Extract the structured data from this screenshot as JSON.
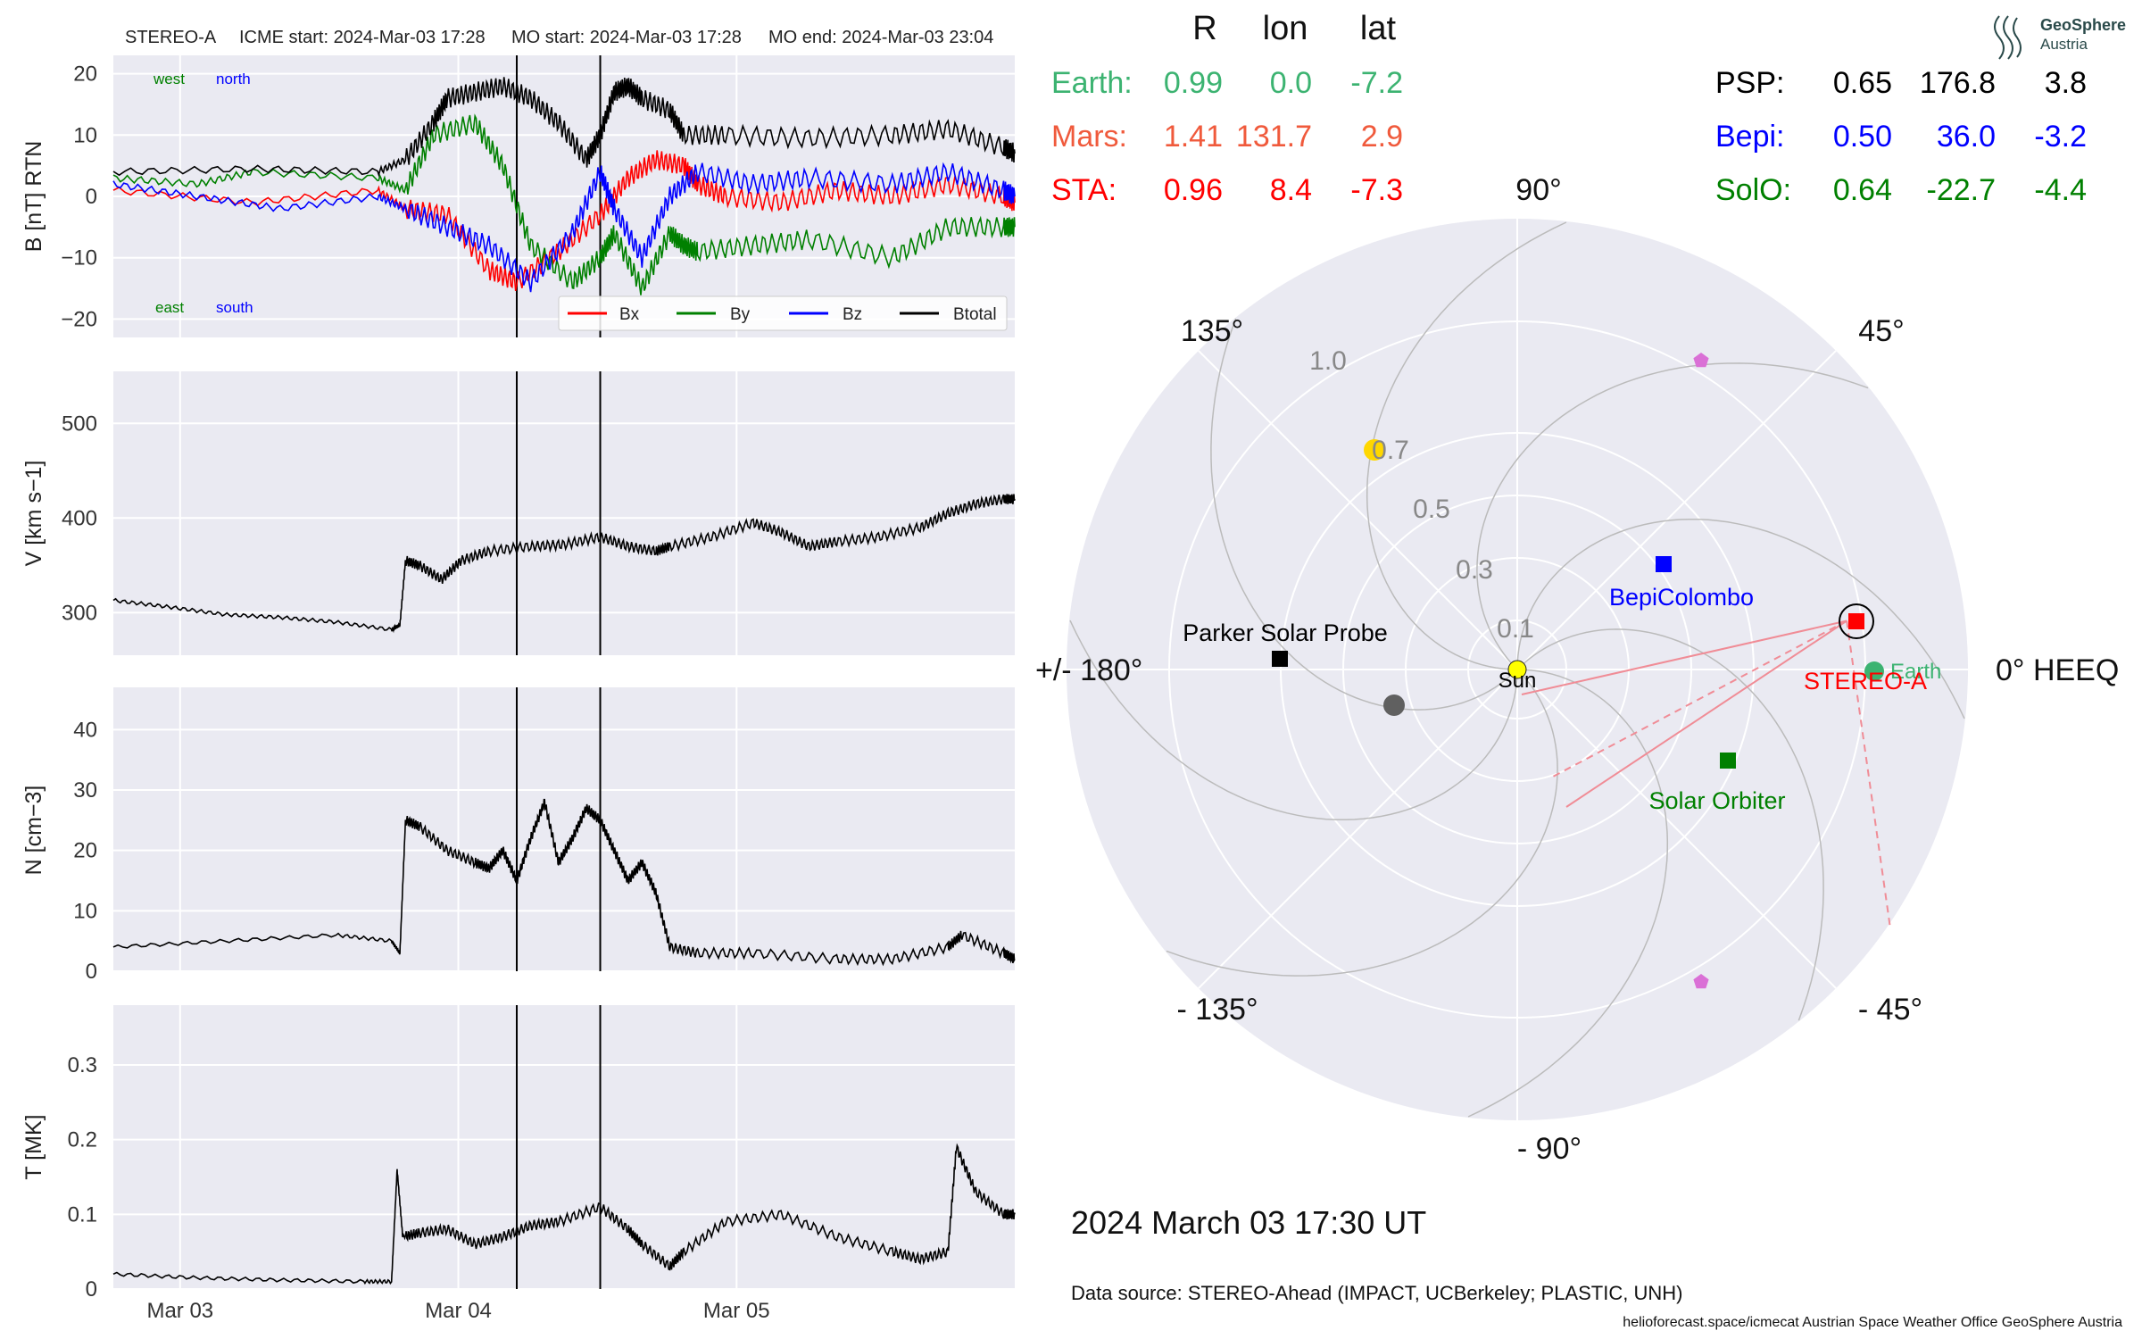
{
  "header": {
    "spacecraft": "STEREO-A",
    "icme_start": "ICME start: 2024-Mar-03 17:28",
    "mo_start": "MO start: 2024-Mar-03 17:28",
    "mo_end": "MO end: 2024-Mar-03 23:04"
  },
  "corner_labels": {
    "west": "west",
    "north": "north",
    "east": "east",
    "south": "south"
  },
  "colors": {
    "bx": "#ff0000",
    "by": "#008000",
    "bz": "#0000ff",
    "btotal": "#000000",
    "earth": "#3cb371",
    "mars": "#f05a3c",
    "sta": "#ff0000",
    "psp": "#000000",
    "bepi": "#0000ff",
    "solo": "#008000",
    "panel_bg": "#eaeaf2"
  },
  "chart_data": [
    {
      "type": "line",
      "ylabel": "B [nT] RTN",
      "ylim": [
        -23,
        23
      ],
      "yticks": [
        -20,
        -10,
        0,
        10,
        20
      ],
      "grid": true,
      "legend_position": "lower-right",
      "series": [
        {
          "name": "Bx",
          "x": [
            0,
            0.5,
            0.95,
            1.05,
            1.2,
            1.35,
            1.45,
            1.6,
            1.75,
            1.85,
            1.95,
            2.05,
            2.1,
            2.2,
            2.4,
            2.6,
            2.8,
            3.0,
            3.2,
            3.24
          ],
          "y": [
            1,
            -1,
            1,
            -2,
            -3,
            -12,
            -14,
            -9,
            -3,
            3,
            6,
            5,
            2,
            0,
            -1,
            1,
            0,
            2,
            0,
            -1
          ]
        },
        {
          "name": "By",
          "x": [
            0,
            0.3,
            0.5,
            0.95,
            1.05,
            1.15,
            1.3,
            1.4,
            1.5,
            1.65,
            1.75,
            1.8,
            1.9,
            2.0,
            2.05,
            2.1,
            2.3,
            2.5,
            2.8,
            3.0,
            3.2,
            3.24
          ],
          "y": [
            3,
            2,
            4,
            3,
            1,
            10,
            12,
            5,
            -8,
            -14,
            -10,
            -6,
            -15,
            -6,
            -8,
            -9,
            -8,
            -7,
            -10,
            -5,
            -5,
            -5
          ]
        },
        {
          "name": "Bz",
          "x": [
            0,
            0.3,
            0.6,
            0.95,
            1.05,
            1.2,
            1.35,
            1.5,
            1.65,
            1.75,
            1.8,
            1.9,
            2.0,
            2.1,
            2.3,
            2.5,
            2.8,
            3.0,
            3.2,
            3.24
          ],
          "y": [
            2,
            0,
            -2,
            0,
            -2,
            -5,
            -8,
            -14,
            -6,
            4,
            -2,
            -10,
            0,
            4,
            2,
            3,
            2,
            4,
            1,
            0
          ]
        },
        {
          "name": "Btotal",
          "x": [
            0,
            0.5,
            0.95,
            1.05,
            1.15,
            1.2,
            1.3,
            1.4,
            1.5,
            1.6,
            1.7,
            1.75,
            1.8,
            1.85,
            1.9,
            2.0,
            2.05,
            2.2,
            2.5,
            2.8,
            3.0,
            3.2,
            3.24
          ],
          "y": [
            4,
            4.5,
            4,
            6,
            12,
            16,
            17,
            18,
            16,
            12,
            6,
            10,
            17,
            18,
            16,
            14,
            10,
            10,
            9.5,
            10,
            11,
            8,
            7
          ]
        }
      ]
    },
    {
      "type": "line",
      "ylabel": "V [km s−1]",
      "ylim": [
        255,
        555
      ],
      "yticks": [
        300,
        400,
        500
      ],
      "grid": true,
      "series": [
        {
          "x": [
            0,
            0.2,
            0.4,
            0.6,
            0.8,
            1.0,
            1.03,
            1.05,
            1.1,
            1.18,
            1.25,
            1.35,
            1.5,
            1.62,
            1.75,
            1.85,
            1.95,
            2.0,
            2.15,
            2.3,
            2.4,
            2.5,
            2.6,
            2.75,
            2.9,
            3.0,
            3.1,
            3.2,
            3.24
          ],
          "y": [
            313,
            306,
            298,
            295,
            290,
            282,
            287,
            355,
            350,
            335,
            355,
            365,
            370,
            372,
            380,
            370,
            365,
            370,
            380,
            395,
            385,
            370,
            375,
            380,
            390,
            405,
            415,
            420,
            420
          ]
        }
      ]
    },
    {
      "type": "line",
      "ylabel": "N [cm−3]",
      "ylim": [
        0,
        47
      ],
      "yticks": [
        0,
        10,
        20,
        30,
        40
      ],
      "grid": true,
      "series": [
        {
          "x": [
            0,
            0.4,
            0.8,
            1.0,
            1.03,
            1.05,
            1.1,
            1.2,
            1.3,
            1.35,
            1.4,
            1.45,
            1.5,
            1.55,
            1.6,
            1.65,
            1.7,
            1.75,
            1.8,
            1.85,
            1.9,
            1.95,
            2.0,
            2.1,
            2.3,
            2.6,
            2.8,
            3.0,
            3.05,
            3.2,
            3.24
          ],
          "y": [
            4,
            5,
            6,
            5,
            3,
            25,
            24,
            20,
            18,
            17,
            20,
            15,
            22,
            28,
            18,
            22,
            27,
            25,
            20,
            15,
            18,
            13,
            4,
            3,
            3,
            2,
            2,
            4,
            6,
            3,
            2
          ]
        }
      ]
    },
    {
      "type": "line",
      "ylabel": "T [MK]",
      "ylim": [
        0,
        0.38
      ],
      "yticks": [
        0.0,
        0.1,
        0.2,
        0.3
      ],
      "xticks": [
        "Mar 03",
        "Mar 04",
        "Mar 05"
      ],
      "grid": true,
      "series": [
        {
          "x": [
            0,
            0.3,
            0.6,
            0.9,
            1.0,
            1.02,
            1.04,
            1.1,
            1.2,
            1.3,
            1.4,
            1.5,
            1.6,
            1.75,
            1.85,
            1.9,
            2.0,
            2.05,
            2.2,
            2.4,
            2.6,
            2.8,
            2.9,
            3.0,
            3.03,
            3.1,
            3.2,
            3.24
          ],
          "y": [
            0.02,
            0.015,
            0.012,
            0.01,
            0.01,
            0.16,
            0.07,
            0.075,
            0.08,
            0.06,
            0.07,
            0.085,
            0.09,
            0.11,
            0.08,
            0.06,
            0.03,
            0.05,
            0.09,
            0.1,
            0.07,
            0.05,
            0.04,
            0.05,
            0.19,
            0.13,
            0.1,
            0.1
          ]
        }
      ]
    },
    {
      "type": "scatter",
      "description_labels": {
        "angles": [
          "90°",
          "45°",
          "0° HEEQ",
          "- 45°",
          "- 90°",
          "- 135°",
          "+/- 180°",
          "135°"
        ],
        "radii": [
          "0.1",
          "0.3",
          "0.5",
          "0.7",
          "1.0"
        ]
      },
      "points": [
        {
          "name": "Sun",
          "r": 0.0,
          "lon": 0.0
        },
        {
          "name": "Earth",
          "r": 0.99,
          "lon": 0.0
        },
        {
          "name": "STEREO-A",
          "r": 0.96,
          "lon": 8.4
        },
        {
          "name": "BepiColombo",
          "r": 0.5,
          "lon": 36.0
        },
        {
          "name": "Solar Orbiter",
          "r": 0.64,
          "lon": -22.7
        },
        {
          "name": "Parker Solar Probe",
          "r": 0.65,
          "lon": 176.8
        },
        {
          "name": "Mars",
          "r": 1.41,
          "lon": 131.7
        }
      ]
    }
  ],
  "table": {
    "headers": [
      "R",
      "lon",
      "lat"
    ],
    "left": [
      {
        "name": "Earth:",
        "r": "0.99",
        "lon": "0.0",
        "lat": "-7.2"
      },
      {
        "name": "Mars:",
        "r": "1.41",
        "lon": "131.7",
        "lat": "2.9"
      },
      {
        "name": "STA:",
        "r": "0.96",
        "lon": "8.4",
        "lat": "-7.3"
      }
    ],
    "right": [
      {
        "name": "PSP:",
        "r": "0.65",
        "lon": "176.8",
        "lat": "3.8"
      },
      {
        "name": "Bepi:",
        "r": "0.50",
        "lon": "36.0",
        "lat": "-3.2"
      },
      {
        "name": "SolO:",
        "r": "0.64",
        "lon": "-22.7",
        "lat": "-4.4"
      }
    ]
  },
  "polar_labels": {
    "a90": "90°",
    "a45": "45°",
    "a0": "0° HEEQ",
    "am45": "- 45°",
    "am90": "- 90°",
    "am135": "- 135°",
    "a180": "+/- 180°",
    "a135": "135°",
    "r10": "1.0",
    "r07": "0.7",
    "r05": "0.5",
    "r03": "0.3",
    "r01": "0.1",
    "sun": "Sun",
    "earth": "Earth",
    "sta": "STEREO-A",
    "bepi": "BepiColombo",
    "solo": "Solar Orbiter",
    "psp": "Parker Solar Probe"
  },
  "legend": {
    "bx": "Bx",
    "by": "By",
    "bz": "Bz",
    "btotal": "Btotal"
  },
  "datetime": "2024 March 03  17:30 UT",
  "data_source": "Data source: STEREO-Ahead (IMPACT, UCBerkeley; PLASTIC, UNH)",
  "footer": "helioforecast.space/icmecat   Austrian Space Weather Office   GeoSphere Austria",
  "logo": {
    "line1": "GeoSphere",
    "line2": "Austria"
  }
}
